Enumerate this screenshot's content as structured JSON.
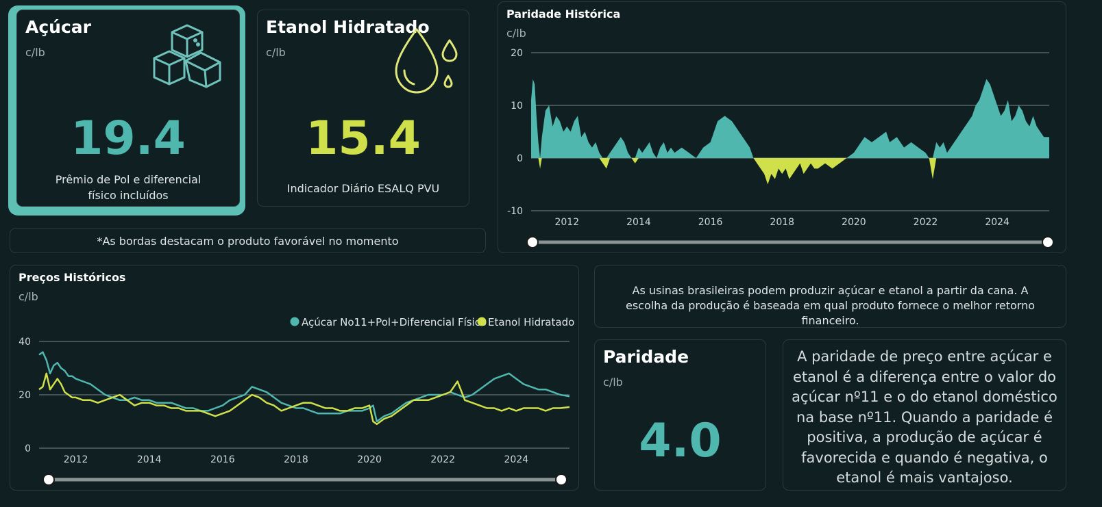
{
  "colors": {
    "accent": "#4fb7ae",
    "ethanol": "#cfe04a",
    "border_highlight": "#5ebfb5"
  },
  "sugar_card": {
    "title": "Açúcar",
    "unit": "c/lb",
    "value": "19.4",
    "caption_line1": "Prêmio de Pol e diferencial",
    "caption_line2": "físico incluídos",
    "icon": "sugar-cubes-icon"
  },
  "ethanol_card": {
    "title": "Etanol Hidratado",
    "unit": "c/lb",
    "value": "15.4",
    "caption": "Indicador Diário ESALQ PVU",
    "icon": "drops-icon"
  },
  "border_note": "*As bordas destacam o produto favorável no momento",
  "info_note": "As usinas brasileiras podem produzir açúcar e etanol a partir da cana. A escolha da produção é baseada em qual produto fornece o melhor retorno financeiro.",
  "parity_card": {
    "title": "Paridade",
    "unit": "c/lb",
    "value": "4.0"
  },
  "parity_explanation": "A paridade de preço entre açúcar e etanol é a diferença entre o valor do açúcar nº11 e o do etanol doméstico na base nº11. Quando a paridade é positiva, a produção de açúcar é favorecida e quando é negativa, o etanol é mais vantajoso.",
  "chart_data": [
    {
      "id": "parity",
      "type": "area",
      "title": "Paridade Histórica",
      "ylabel": "c/lb",
      "xlim": [
        2011.0,
        2025.45
      ],
      "ylim": [
        -10,
        20
      ],
      "yticks": [
        "20",
        "10",
        "0",
        "-10"
      ],
      "xticks": [
        "2012",
        "2014",
        "2016",
        "2018",
        "2020",
        "2022",
        "2024"
      ],
      "grid": true,
      "positive_color": "#4fb7ae",
      "negative_color": "#cfe04a",
      "x": [
        2011.0,
        2011.05,
        2011.1,
        2011.15,
        2011.2,
        2011.25,
        2011.3,
        2011.4,
        2011.5,
        2011.6,
        2011.7,
        2011.8,
        2011.9,
        2012.0,
        2012.1,
        2012.2,
        2012.3,
        2012.4,
        2012.5,
        2012.6,
        2012.7,
        2012.8,
        2012.9,
        2013.0,
        2013.1,
        2013.2,
        2013.3,
        2013.4,
        2013.5,
        2013.6,
        2013.7,
        2013.8,
        2013.9,
        2014.0,
        2014.1,
        2014.2,
        2014.3,
        2014.4,
        2014.5,
        2014.6,
        2014.7,
        2014.8,
        2014.9,
        2015.0,
        2015.2,
        2015.4,
        2015.6,
        2015.8,
        2016.0,
        2016.2,
        2016.4,
        2016.6,
        2016.7,
        2016.8,
        2016.9,
        2017.0,
        2017.1,
        2017.2,
        2017.3,
        2017.4,
        2017.5,
        2017.6,
        2017.7,
        2017.8,
        2017.9,
        2018.0,
        2018.1,
        2018.2,
        2018.3,
        2018.4,
        2018.5,
        2018.6,
        2018.7,
        2018.8,
        2018.9,
        2019.0,
        2019.2,
        2019.4,
        2019.6,
        2019.8,
        2020.0,
        2020.1,
        2020.2,
        2020.3,
        2020.5,
        2020.7,
        2020.9,
        2021.0,
        2021.2,
        2021.4,
        2021.6,
        2021.8,
        2022.0,
        2022.1,
        2022.2,
        2022.3,
        2022.4,
        2022.5,
        2022.6,
        2022.7,
        2022.8,
        2022.9,
        2023.0,
        2023.1,
        2023.2,
        2023.3,
        2023.4,
        2023.5,
        2023.6,
        2023.7,
        2023.8,
        2023.9,
        2024.0,
        2024.1,
        2024.2,
        2024.3,
        2024.4,
        2024.5,
        2024.6,
        2024.7,
        2024.8,
        2024.9,
        2025.0,
        2025.1,
        2025.2,
        2025.3,
        2025.45
      ],
      "y": [
        11,
        15,
        14,
        8,
        3,
        -2,
        4,
        9,
        10,
        6,
        8,
        7,
        5,
        6,
        5,
        7,
        8,
        4,
        5,
        3,
        2,
        3,
        1,
        -1,
        -2,
        1,
        2,
        3,
        4,
        3,
        1,
        0,
        -1,
        2,
        1,
        2,
        3,
        1,
        0,
        2,
        3,
        1,
        2,
        1,
        2,
        1,
        0,
        2,
        3,
        7,
        8,
        7,
        6,
        5,
        4,
        3,
        2,
        0,
        -1,
        -2,
        -3,
        -5,
        -3,
        -4,
        -2,
        -3,
        -2,
        -4,
        -3,
        -2,
        -1,
        -3,
        -2,
        -1,
        -2,
        -2,
        -1,
        -2,
        -1,
        0,
        1,
        2,
        3,
        4,
        3,
        4,
        5,
        3,
        4,
        2,
        3,
        2,
        1,
        0,
        -4,
        3,
        2,
        3,
        1,
        2,
        3,
        4,
        5,
        6,
        7,
        8,
        10,
        11,
        13,
        15,
        14,
        12,
        10,
        8,
        9,
        11,
        7,
        8,
        10,
        9,
        7,
        6,
        8,
        6,
        5,
        4,
        4
      ]
    },
    {
      "id": "prices",
      "type": "line",
      "title": "Preços Históricos",
      "ylabel": "c/lb",
      "xlim": [
        2011.0,
        2025.45
      ],
      "ylim": [
        0,
        40
      ],
      "yticks": [
        "40",
        "20",
        "0"
      ],
      "xticks": [
        "2012",
        "2014",
        "2016",
        "2018",
        "2020",
        "2022",
        "2024"
      ],
      "grid": true,
      "legend_position": "top-right",
      "x": [
        2011.0,
        2011.1,
        2011.2,
        2011.3,
        2011.4,
        2011.5,
        2011.6,
        2011.7,
        2011.8,
        2011.9,
        2012.0,
        2012.2,
        2012.4,
        2012.6,
        2012.8,
        2013.0,
        2013.2,
        2013.4,
        2013.6,
        2013.8,
        2014.0,
        2014.2,
        2014.4,
        2014.6,
        2014.8,
        2015.0,
        2015.2,
        2015.4,
        2015.6,
        2015.8,
        2016.0,
        2016.2,
        2016.4,
        2016.6,
        2016.8,
        2017.0,
        2017.2,
        2017.4,
        2017.6,
        2017.8,
        2018.0,
        2018.2,
        2018.4,
        2018.6,
        2018.8,
        2019.0,
        2019.2,
        2019.4,
        2019.6,
        2019.8,
        2020.0,
        2020.1,
        2020.2,
        2020.4,
        2020.6,
        2020.8,
        2021.0,
        2021.2,
        2021.4,
        2021.6,
        2021.8,
        2022.0,
        2022.2,
        2022.4,
        2022.6,
        2022.8,
        2023.0,
        2023.2,
        2023.4,
        2023.6,
        2023.8,
        2024.0,
        2024.2,
        2024.4,
        2024.6,
        2024.8,
        2025.0,
        2025.2,
        2025.45
      ],
      "series": [
        {
          "name": "Açúcar No11+Pol+Diferencial Físico",
          "color": "#4fb7ae",
          "values": [
            35,
            36,
            33,
            28,
            31,
            32,
            30,
            29,
            27,
            27,
            26,
            25,
            24,
            22,
            20,
            19,
            18,
            18,
            19,
            18,
            18,
            17,
            17,
            17,
            16,
            15,
            15,
            14,
            14,
            15,
            16,
            18,
            19,
            20,
            23,
            22,
            21,
            19,
            17,
            16,
            15,
            15,
            14,
            13,
            13,
            13,
            13,
            14,
            14,
            14,
            15,
            16,
            10,
            12,
            13,
            15,
            17,
            18,
            19,
            20,
            20,
            20,
            21,
            20,
            19,
            20,
            22,
            24,
            26,
            27,
            28,
            26,
            24,
            23,
            22,
            22,
            21,
            20,
            19.4
          ]
        },
        {
          "name": "Etanol Hidratado",
          "color": "#cfe04a",
          "values": [
            22,
            23,
            28,
            22,
            24,
            26,
            24,
            21,
            20,
            19,
            19,
            18,
            18,
            17,
            18,
            19,
            20,
            18,
            16,
            17,
            17,
            16,
            16,
            15,
            15,
            14,
            14,
            14,
            13,
            12,
            13,
            14,
            16,
            18,
            20,
            19,
            17,
            16,
            14,
            15,
            16,
            17,
            17,
            16,
            15,
            15,
            14,
            14,
            15,
            15,
            16,
            10,
            9,
            11,
            12,
            14,
            16,
            18,
            18,
            18,
            19,
            20,
            21,
            25,
            18,
            17,
            16,
            15,
            15,
            14,
            15,
            14,
            15,
            15,
            15,
            14,
            15,
            15,
            15.4
          ]
        }
      ]
    }
  ]
}
